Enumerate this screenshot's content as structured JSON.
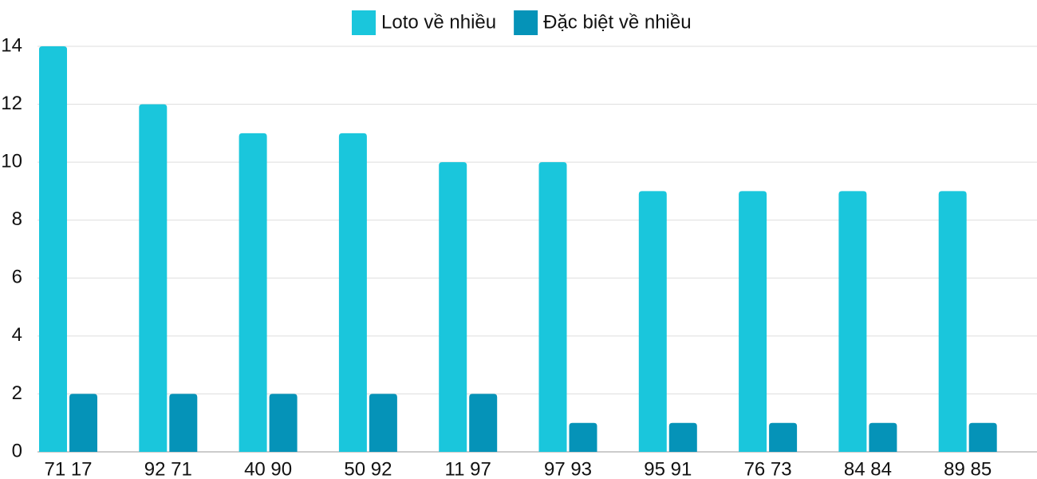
{
  "chart_data": {
    "type": "bar",
    "categories": [
      "71 17",
      "92 71",
      "40 90",
      "50 92",
      "11 97",
      "97 93",
      "95 91",
      "76 73",
      "84 84",
      "89 85"
    ],
    "series": [
      {
        "name": "Loto về nhiều",
        "color": "#1ac6dc",
        "values": [
          14,
          12,
          11,
          11,
          10,
          10,
          9,
          9,
          9,
          9
        ]
      },
      {
        "name": "Đặc biệt về nhiều",
        "color": "#0593b8",
        "values": [
          2,
          2,
          2,
          2,
          2,
          1,
          1,
          1,
          1,
          1
        ]
      }
    ],
    "ylim": [
      0,
      14
    ],
    "yticks": [
      0,
      2,
      4,
      6,
      8,
      10,
      12,
      14
    ],
    "grid": true,
    "legend": "top"
  }
}
